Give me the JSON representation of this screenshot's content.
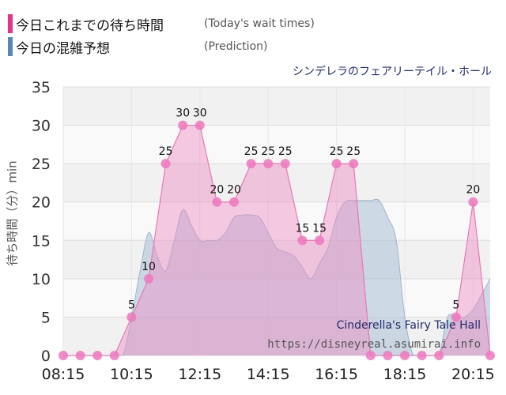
{
  "legend": [
    {
      "label": "今日これまでの待ち時間",
      "sub": "(Today's wait times)",
      "color": "#e8338d"
    },
    {
      "label": "今日の混雑予想",
      "sub": "(Prediction)",
      "color": "#5a86b3"
    }
  ],
  "attraction_jp": "シンデレラのフェアリーテイル・ホール",
  "watermark": {
    "name_en": "Cinderella's Fairy Tale Hall",
    "url": "https://disneyreal.asumirai.info"
  },
  "chart_data": {
    "type": "area",
    "ylabel": "待ち時間（分）min",
    "ylim": [
      0,
      35
    ],
    "yticks": [
      0,
      5,
      10,
      15,
      20,
      25,
      30,
      35
    ],
    "xlim": [
      "08:15",
      "20:45"
    ],
    "xticks": [
      "08:15",
      "10:15",
      "12:15",
      "14:15",
      "16:15",
      "18:15",
      "20:15"
    ],
    "series": [
      {
        "name": "今日これまでの待ち時間",
        "color": "#f08cc4",
        "x": [
          "08:15",
          "08:45",
          "09:15",
          "09:45",
          "10:15",
          "10:45",
          "11:15",
          "11:45",
          "12:15",
          "12:45",
          "13:15",
          "13:45",
          "14:15",
          "14:45",
          "15:15",
          "15:45",
          "16:15",
          "16:45",
          "17:15",
          "17:45",
          "18:15",
          "18:45",
          "19:15",
          "19:45",
          "20:15",
          "20:45"
        ],
        "values": [
          0,
          0,
          0,
          0,
          5,
          10,
          25,
          30,
          30,
          20,
          20,
          25,
          25,
          25,
          15,
          15,
          25,
          25,
          0,
          0,
          0,
          0,
          0,
          5,
          20,
          0
        ],
        "labels": [
          null,
          null,
          null,
          null,
          "5",
          "10",
          "25",
          "30",
          "30",
          "20",
          "20",
          "25",
          "25",
          "25",
          "15",
          "15",
          "25",
          "25",
          null,
          null,
          null,
          null,
          null,
          "5",
          "20",
          null
        ]
      },
      {
        "name": "今日の混雑予想",
        "color": "#a9c0d6",
        "x": [
          "08:15",
          "09:45",
          "10:00",
          "10:15",
          "10:30",
          "10:45",
          "11:00",
          "11:15",
          "11:30",
          "11:45",
          "12:00",
          "12:15",
          "12:30",
          "12:45",
          "13:00",
          "13:15",
          "13:30",
          "13:45",
          "14:00",
          "14:15",
          "14:30",
          "14:45",
          "15:00",
          "15:15",
          "15:30",
          "15:45",
          "16:00",
          "16:15",
          "16:30",
          "16:45",
          "17:00",
          "17:15",
          "17:30",
          "17:45",
          "18:00",
          "18:15",
          "18:30",
          "18:45",
          "19:00",
          "19:15",
          "19:30",
          "19:45",
          "20:00",
          "20:15",
          "20:30",
          "20:45"
        ],
        "values": [
          0,
          0,
          0,
          5,
          11,
          16,
          13,
          11,
          15,
          19,
          17,
          15,
          15,
          15,
          16,
          18,
          18.3,
          18.3,
          18,
          16,
          14,
          13.5,
          13,
          11.5,
          10,
          12,
          14,
          18,
          20,
          20.2,
          20.2,
          20.2,
          20.2,
          18,
          15,
          5,
          0,
          0,
          0,
          0,
          5,
          5,
          5,
          6,
          8,
          10
        ]
      }
    ]
  }
}
